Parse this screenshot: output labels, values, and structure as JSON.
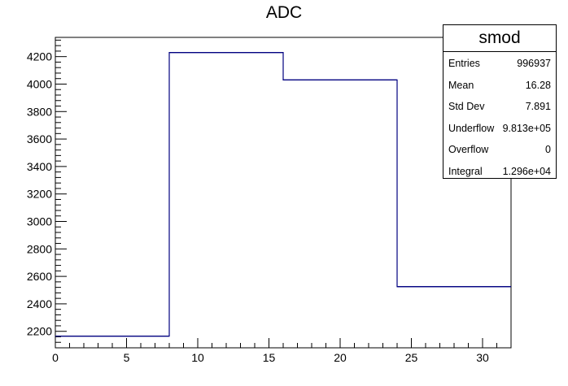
{
  "chart_data": {
    "type": "bar",
    "title": "ADC",
    "xlabel": "",
    "ylabel": "",
    "xlim": [
      0,
      32
    ],
    "ylim": [
      2080,
      4340
    ],
    "bin_edges": [
      0,
      8,
      16,
      24,
      32
    ],
    "values": [
      2165,
      4230,
      4030,
      2525
    ],
    "xticks": [
      0,
      5,
      10,
      15,
      20,
      25,
      30
    ],
    "yticks": [
      2200,
      2400,
      2600,
      2800,
      3000,
      3200,
      3400,
      3600,
      3800,
      4000,
      4200
    ],
    "line_color": "#000080",
    "grid": false,
    "legend": "none"
  },
  "stats_box": {
    "title": "smod",
    "rows": [
      {
        "key": "Entries",
        "value": "996937"
      },
      {
        "key": "Mean",
        "value": "16.28"
      },
      {
        "key": "Std Dev",
        "value": "7.891"
      },
      {
        "key": "Underflow",
        "value": "9.813e+05"
      },
      {
        "key": "Overflow",
        "value": "0"
      },
      {
        "key": "Integral",
        "value": "1.296e+04"
      }
    ]
  }
}
